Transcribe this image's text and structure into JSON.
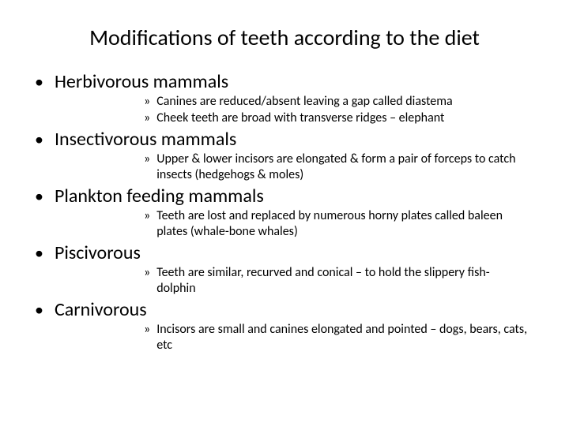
{
  "title": "Modifications of teeth according to the diet",
  "sections": [
    {
      "heading": "Herbivorous mammals",
      "subs": [
        "Canines are reduced/absent leaving a gap called diastema",
        "Cheek teeth are broad with transverse ridges – elephant"
      ]
    },
    {
      "heading": "Insectivorous mammals",
      "subs": [
        "Upper & lower incisors are elongated & form a pair of forceps to catch insects (hedgehogs & moles)"
      ]
    },
    {
      "heading": "Plankton feeding mammals",
      "subs": [
        "Teeth are lost and replaced by numerous horny plates called baleen plates (whale-bone whales)"
      ]
    },
    {
      "heading": "Piscivorous",
      "subs": [
        "Teeth are similar, recurved and conical – to hold the slippery fish- dolphin"
      ]
    },
    {
      "heading": "Carnivorous",
      "subs": [
        "Incisors are small and canines elongated and pointed – dogs, bears, cats, etc"
      ]
    }
  ],
  "style": {
    "bullet_l1": "•",
    "bullet_l2": "»",
    "title_fontsize": 28,
    "l1_fontsize": 24,
    "l2_fontsize": 16,
    "text_color": "#000000",
    "background_color": "#ffffff"
  }
}
